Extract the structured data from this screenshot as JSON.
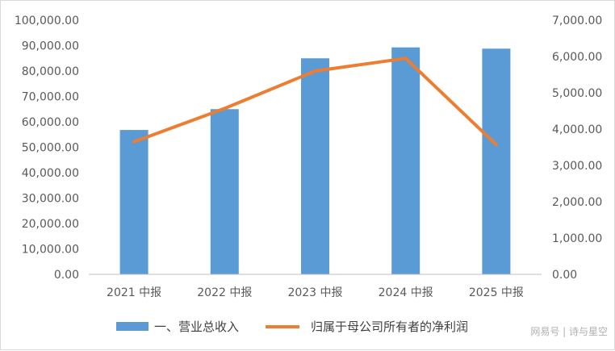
{
  "chart_data": {
    "type": "bar+line",
    "categories": [
      "2021 中报",
      "2022 中报",
      "2023 中报",
      "2024 中报",
      "2025 中报"
    ],
    "series": [
      {
        "name": "一、营业总收入",
        "type": "bar",
        "axis": "left",
        "color": "#5b9bd5",
        "values": [
          56800,
          65000,
          85000,
          89300,
          88800
        ]
      },
      {
        "name": "归属于母公司所有者的净利润",
        "type": "line",
        "axis": "right",
        "color": "#ed7d31",
        "values": [
          3650,
          4570,
          5600,
          5950,
          3570
        ]
      }
    ],
    "y_left": {
      "range": [
        0,
        100000
      ],
      "ticks": [
        "0.00",
        "10,000.00",
        "20,000.00",
        "30,000.00",
        "40,000.00",
        "50,000.00",
        "60,000.00",
        "70,000.00",
        "80,000.00",
        "90,000.00",
        "100,000.00"
      ]
    },
    "y_right": {
      "range": [
        0,
        7000
      ],
      "ticks": [
        "0.00",
        "1,000.00",
        "2,000.00",
        "3,000.00",
        "4,000.00",
        "5,000.00",
        "6,000.00",
        "7,000.00"
      ]
    },
    "grid": false,
    "legend_position": "bottom"
  },
  "watermark": "网易号 | 诗与星空"
}
